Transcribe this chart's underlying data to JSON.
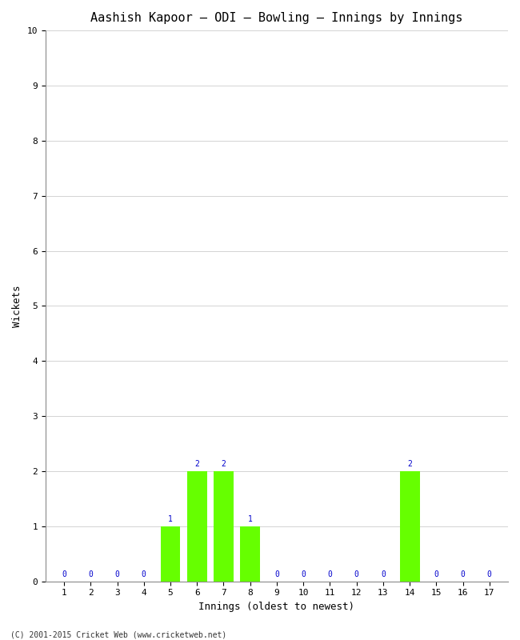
{
  "title": "Aashish Kapoor – ODI – Bowling – Innings by Innings",
  "xlabel": "Innings (oldest to newest)",
  "ylabel": "Wickets",
  "innings": [
    1,
    2,
    3,
    4,
    5,
    6,
    7,
    8,
    9,
    10,
    11,
    12,
    13,
    14,
    15,
    16,
    17
  ],
  "wickets": [
    0,
    0,
    0,
    0,
    1,
    2,
    2,
    1,
    0,
    0,
    0,
    0,
    0,
    2,
    0,
    0,
    0
  ],
  "bar_color": "#66ff00",
  "bar_edge_color": "#66ff00",
  "annotation_color": "#0000cc",
  "ylim": [
    0,
    10
  ],
  "yticks": [
    0,
    1,
    2,
    3,
    4,
    5,
    6,
    7,
    8,
    9,
    10
  ],
  "background_color": "#ffffff",
  "plot_bg_color": "#ffffff",
  "grid_color": "#cccccc",
  "footer": "(C) 2001-2015 Cricket Web (www.cricketweb.net)",
  "title_fontsize": 11,
  "axis_label_fontsize": 9,
  "tick_fontsize": 8,
  "annotation_fontsize": 7,
  "footer_fontsize": 7
}
